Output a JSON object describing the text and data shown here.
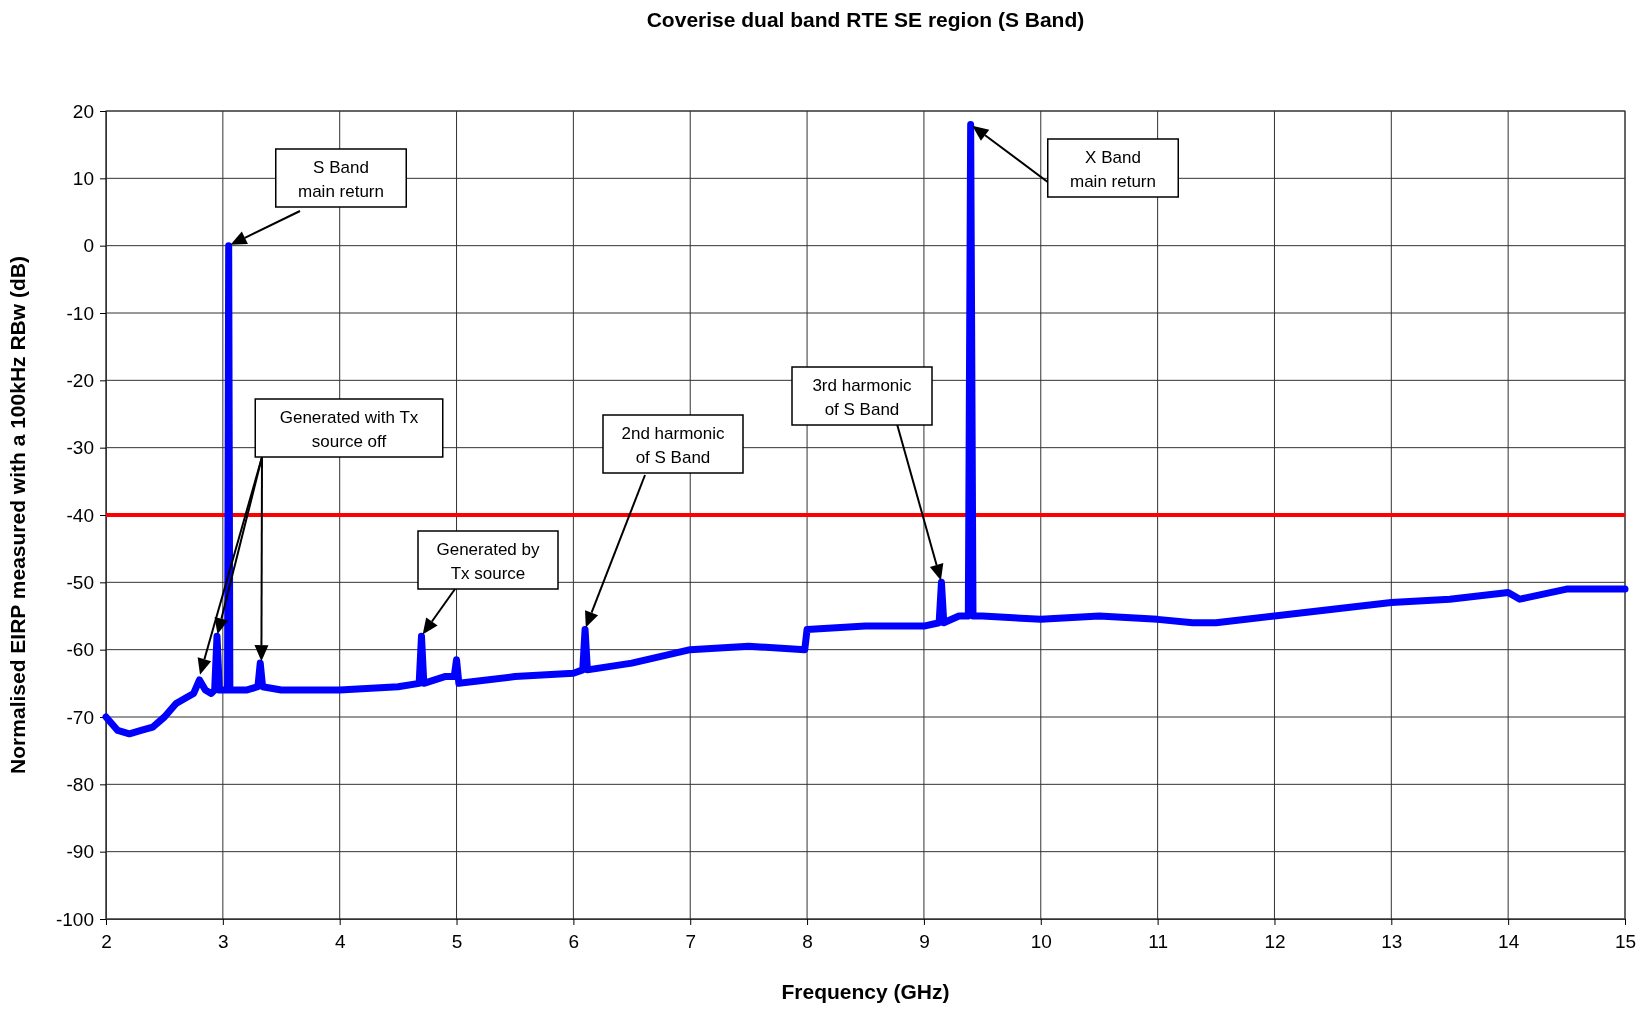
{
  "chart_data": {
    "type": "line",
    "title": "Coverise dual band RTE SE region (S Band)",
    "xlabel": "Frequency (GHz)",
    "ylabel": "Normalised EIRP measured with a 100kHz RBw (dB)",
    "xlim": [
      2,
      15
    ],
    "xticks": [
      2,
      3,
      4,
      5,
      6,
      7,
      8,
      9,
      10,
      11,
      12,
      13,
      14,
      15
    ],
    "ylim": [
      -100,
      20
    ],
    "yticks": [
      -100,
      -90,
      -80,
      -70,
      -60,
      -50,
      -40,
      -30,
      -20,
      -10,
      0,
      10,
      20
    ],
    "grid": true,
    "line_style": "solid",
    "series": [
      {
        "color": "#0000ff",
        "x": [
          2.0,
          2.1,
          2.2,
          2.3,
          2.4,
          2.5,
          2.6,
          2.7,
          2.75,
          2.8,
          2.85,
          2.9,
          2.93,
          2.95,
          2.97,
          3.0,
          3.04,
          3.05,
          3.06,
          3.1,
          3.2,
          3.3,
          3.32,
          3.34,
          3.5,
          4.0,
          4.5,
          4.68,
          4.7,
          4.72,
          4.9,
          4.98,
          5.0,
          5.02,
          5.5,
          6.0,
          6.08,
          6.1,
          6.12,
          6.5,
          7.0,
          7.5,
          7.98,
          8.0,
          8.5,
          9.0,
          9.13,
          9.15,
          9.17,
          9.3,
          9.38,
          9.4,
          9.42,
          9.5,
          10.0,
          10.5,
          11.0,
          11.3,
          11.5,
          12.0,
          12.5,
          13.0,
          13.5,
          14.0,
          14.1,
          14.5,
          15.0
        ],
        "values": [
          -70,
          -72,
          -72.5,
          -72,
          -71.5,
          -70,
          -68,
          -67,
          -66.5,
          -64.5,
          -66,
          -66.5,
          -66,
          -58,
          -66,
          -66,
          -66,
          0,
          -66,
          -66,
          -66,
          -65.5,
          -62,
          -65.5,
          -66,
          -66,
          -65.5,
          -65,
          -58,
          -65,
          -64,
          -64,
          -61.5,
          -65,
          -64,
          -63.5,
          -63,
          -57,
          -63,
          -62,
          -60,
          -59.5,
          -60,
          -57,
          -56.5,
          -56.5,
          -56,
          -50,
          -56,
          -55,
          -55,
          18,
          -55,
          -55,
          -55.5,
          -55,
          -55.5,
          -56,
          -56,
          -55,
          -54,
          -53,
          -52.5,
          -51.5,
          -52.5,
          -51,
          -51
        ]
      }
    ],
    "ref_lines": [
      {
        "axis": "y",
        "value": -40,
        "color": "#ff0000",
        "line_style": "solid"
      }
    ],
    "annotations": [
      "S Band\nmain return",
      "Generated with Tx\nsource off",
      "Generated by\nTx source",
      "2nd harmonic\nof S Band",
      "3rd harmonic\nof S Band",
      "X Band\nmain return"
    ]
  }
}
